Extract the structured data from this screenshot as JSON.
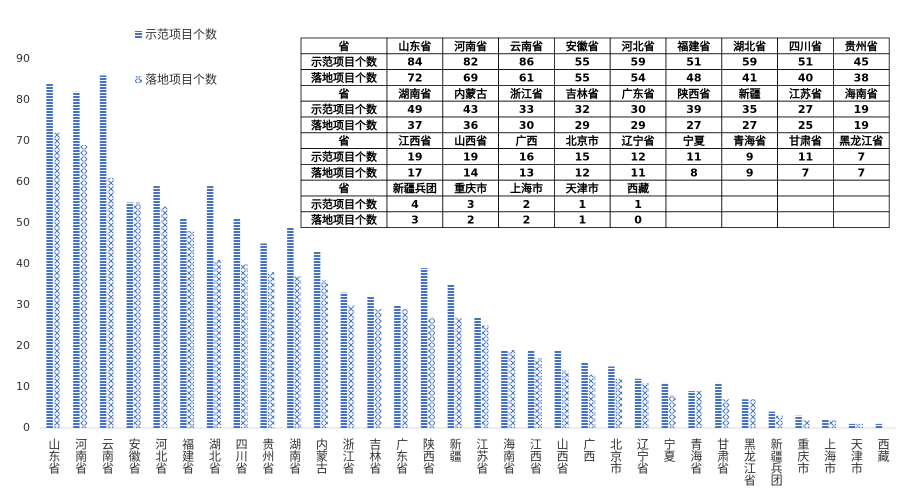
{
  "chart_data": {
    "type": "bar",
    "categories": [
      "山东省",
      "河南省",
      "云南省",
      "安徽省",
      "河北省",
      "福建省",
      "湖北省",
      "四川省",
      "贵州省",
      "湖南省",
      "内蒙古",
      "浙江省",
      "吉林省",
      "广东省",
      "陕西省",
      "新疆",
      "江苏省",
      "海南省",
      "江西省",
      "山西省",
      "广西",
      "北京市",
      "辽宁省",
      "宁夏",
      "青海省",
      "甘肃省",
      "黑龙江省",
      "新疆兵团",
      "重庆市",
      "上海市",
      "天津市",
      "西藏"
    ],
    "series": [
      {
        "name": "示范项目个数",
        "color": "#4472c4",
        "pattern": "stripes",
        "values": [
          84,
          82,
          86,
          55,
          59,
          51,
          59,
          51,
          45,
          49,
          43,
          33,
          32,
          30,
          39,
          35,
          27,
          19,
          19,
          19,
          16,
          15,
          12,
          11,
          9,
          11,
          7,
          4,
          3,
          2,
          1,
          1
        ]
      },
      {
        "name": "落地项目个数",
        "color": "#4472c4",
        "pattern": "cross",
        "values": [
          72,
          69,
          61,
          55,
          54,
          48,
          41,
          40,
          38,
          37,
          36,
          30,
          29,
          29,
          27,
          27,
          25,
          19,
          17,
          14,
          13,
          12,
          11,
          8,
          9,
          7,
          7,
          3,
          2,
          2,
          1,
          0
        ]
      }
    ],
    "ylim": [
      0,
      90
    ],
    "yticks": [
      0,
      10,
      20,
      30,
      40,
      50,
      60,
      70,
      80,
      90
    ],
    "table_header": "省"
  }
}
